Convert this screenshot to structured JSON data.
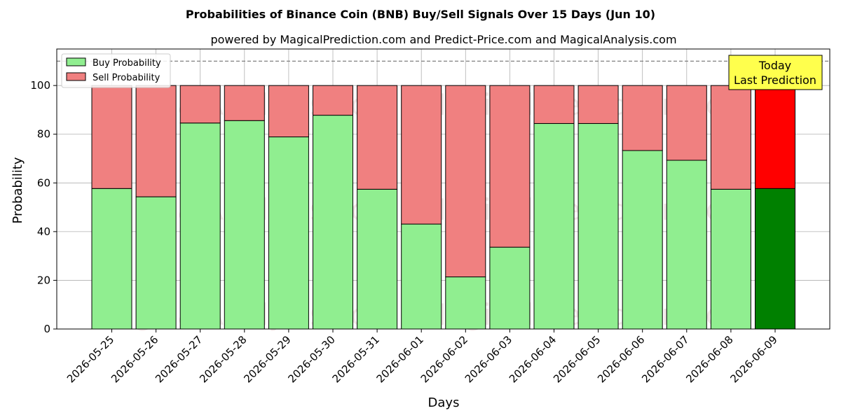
{
  "chart_data": {
    "type": "bar",
    "stacked": true,
    "title": "Probabilities of Binance Coin (BNB) Buy/Sell Signals Over 15 Days (Jun 10)",
    "subtitle": "powered by MagicalPrediction.com and Predict-Price.com and MagicalAnalysis.com",
    "xlabel": "Days",
    "ylabel": "Probability",
    "ylim": [
      0,
      115
    ],
    "yticks": [
      0,
      20,
      40,
      60,
      80,
      100
    ],
    "grid": true,
    "legend_placement": "top-left",
    "reference_line": 110,
    "categories": [
      "2026-05-25",
      "2026-05-26",
      "2026-05-27",
      "2026-05-28",
      "2026-05-29",
      "2026-05-30",
      "2026-05-31",
      "2026-06-01",
      "2026-06-02",
      "2026-06-03",
      "2026-06-04",
      "2026-06-05",
      "2026-06-06",
      "2026-06-07",
      "2026-06-08",
      "2026-06-09"
    ],
    "series": [
      {
        "name": "Buy Probability",
        "color": "#90ee90",
        "highlight_color": "#008000",
        "values": [
          57.7,
          54.3,
          84.6,
          85.6,
          78.9,
          87.8,
          57.4,
          43.1,
          21.4,
          33.6,
          84.4,
          84.4,
          73.3,
          69.3,
          57.4,
          57.7
        ]
      },
      {
        "name": "Sell Probability",
        "color": "#f08080",
        "highlight_color": "#ff0000",
        "values": [
          42.3,
          45.7,
          15.4,
          14.4,
          21.1,
          12.2,
          42.6,
          56.9,
          78.6,
          66.4,
          15.6,
          15.6,
          26.7,
          30.7,
          42.6,
          42.3
        ]
      }
    ],
    "highlight_index": 15,
    "annotation": {
      "line1": "Today",
      "line2": "Last Prediction",
      "bg": "#ffff4d"
    },
    "watermarks": [
      "MagicalAnalysis.com",
      "MagicalPrediction.com"
    ]
  }
}
